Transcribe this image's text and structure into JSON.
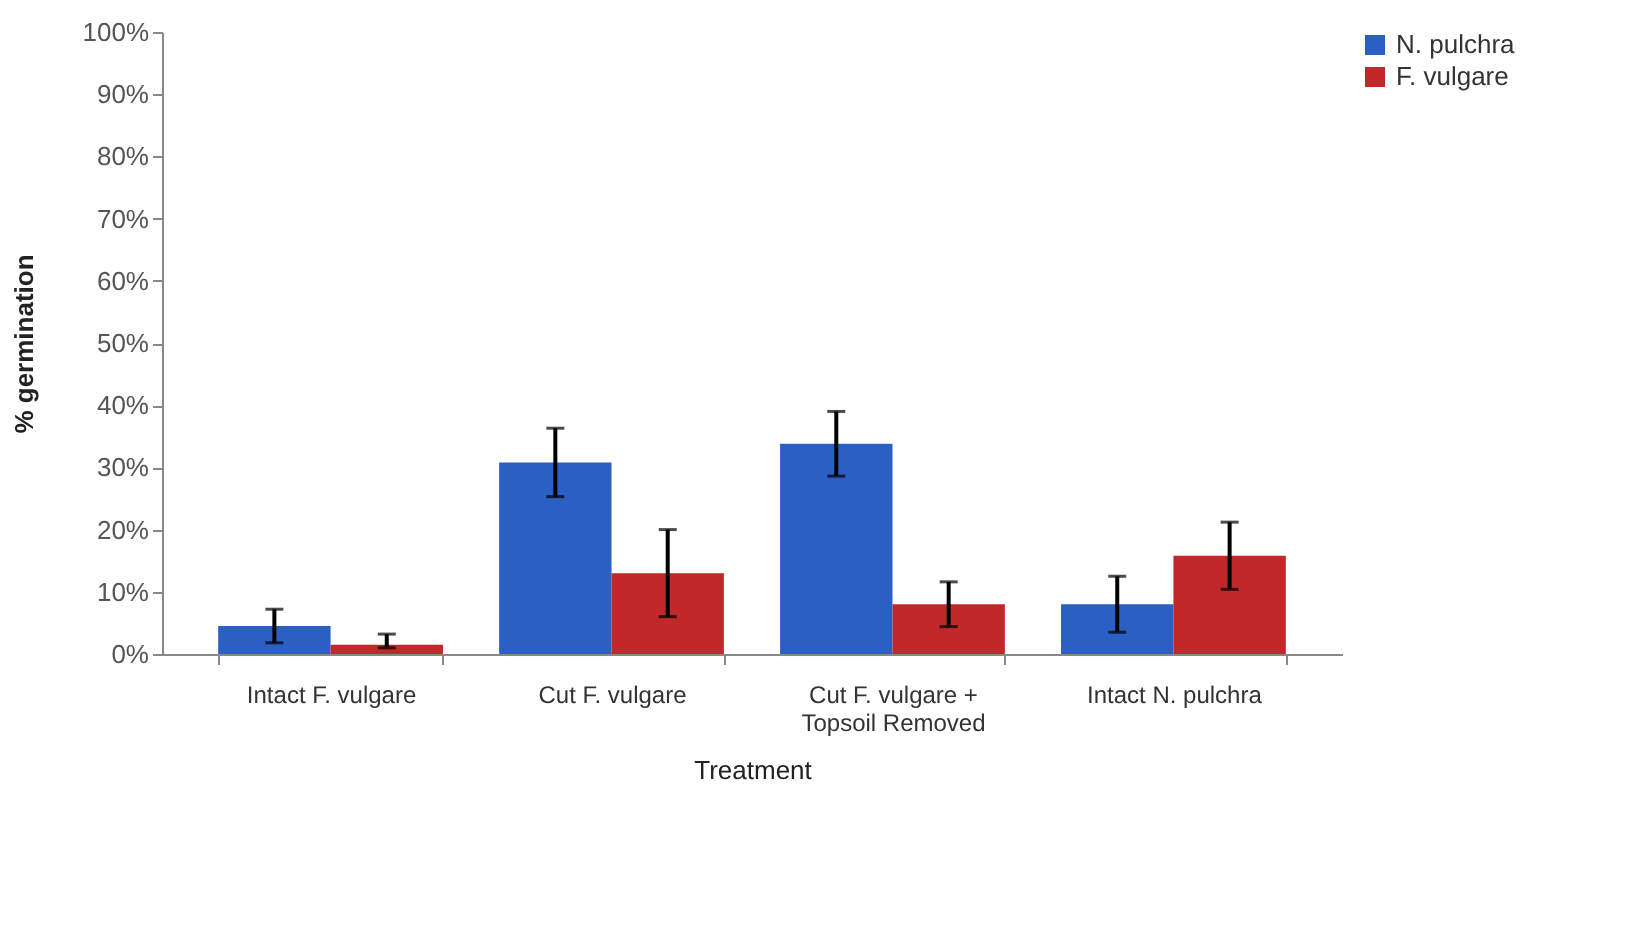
{
  "chart_data": {
    "type": "bar",
    "xlabel": "Treatment",
    "ylabel": "% germination",
    "categories": [
      "Intact F. vulgare",
      "Cut F. vulgare",
      "Cut F. vulgare + Topsoil Removed",
      "Intact N. pulchra"
    ],
    "series": [
      {
        "name": "N. pulchra",
        "color": "#2a5fc4",
        "values": [
          4.5,
          30.8,
          33.8,
          8
        ],
        "errors": [
          2.7,
          5.5,
          5.2,
          4.5
        ]
      },
      {
        "name": "F. vulgare",
        "color": "#c0282a",
        "values": [
          1.5,
          13,
          8,
          15.8
        ],
        "errors": [
          [
            1,
            3.2
          ],
          7,
          3.6,
          5.4
        ]
      }
    ],
    "ylim": [
      0,
      100
    ],
    "yticks": [
      {
        "value": 0,
        "label": "0%"
      },
      {
        "value": 10,
        "label": "10%"
      },
      {
        "value": 20,
        "label": "20%"
      },
      {
        "value": 30,
        "label": "30%"
      },
      {
        "value": 40,
        "label": "40%"
      },
      {
        "value": 50,
        "label": "50%"
      },
      {
        "value": 60,
        "label": "60%"
      },
      {
        "value": 70,
        "label": "70%"
      },
      {
        "value": 80,
        "label": "80%"
      },
      {
        "value": 90,
        "label": "90%"
      },
      {
        "value": 100,
        "label": "100%"
      }
    ],
    "grid": false,
    "legend": "right"
  }
}
